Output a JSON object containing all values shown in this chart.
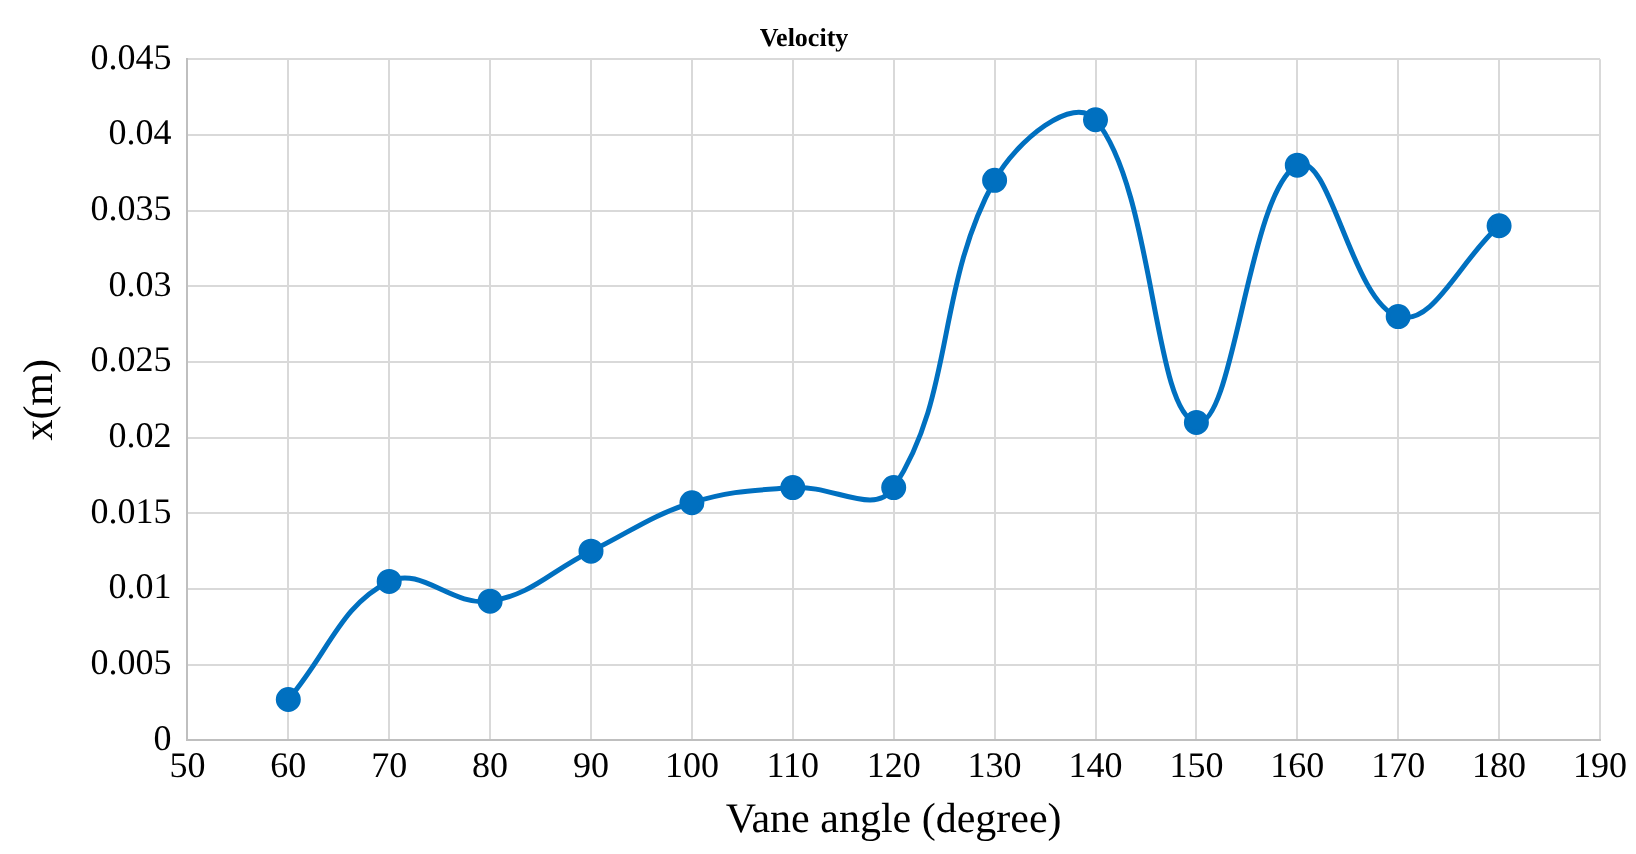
{
  "chart_data": {
    "type": "line",
    "title": "Velocity",
    "xlabel": "Vane angle (degree)",
    "ylabel": "x(m)",
    "x": [
      60,
      70,
      80,
      90,
      100,
      110,
      120,
      130,
      140,
      150,
      160,
      170,
      180
    ],
    "series": [
      {
        "color": "#0070c0",
        "values": [
          0.0027,
          0.0105,
          0.0092,
          0.0125,
          0.0157,
          0.0167,
          0.0167,
          0.037,
          0.041,
          0.021,
          0.038,
          0.028,
          0.034
        ]
      }
    ],
    "xlim": [
      50,
      190
    ],
    "xticks": [
      50,
      60,
      70,
      80,
      90,
      100,
      110,
      120,
      130,
      140,
      150,
      160,
      170,
      180,
      190
    ],
    "ylim": [
      0,
      0.045
    ],
    "yticks": [
      0,
      0.005,
      0.01,
      0.015,
      0.02,
      0.025,
      0.03,
      0.035,
      0.04,
      0.045
    ],
    "grid": true,
    "legend": false,
    "marker": "circle",
    "line_style": "solid"
  }
}
